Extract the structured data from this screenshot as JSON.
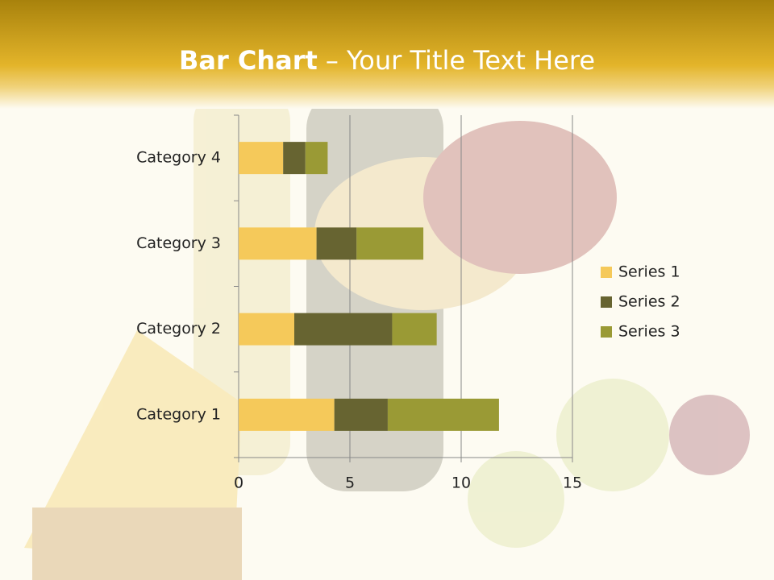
{
  "chart_data": {
    "type": "stacked-barh",
    "title": "Bar Chart",
    "title_rest": "– Your Title Text Here",
    "categories": [
      "Category 1",
      "Category 2",
      "Category 3",
      "Category 4"
    ],
    "series": [
      {
        "name": "Series 1",
        "color": "#f5c95a",
        "values": [
          4.3,
          2.5,
          3.5,
          2
        ]
      },
      {
        "name": "Series 2",
        "color": "#676431",
        "values": [
          2.4,
          4.4,
          1.8,
          1
        ]
      },
      {
        "name": "Series 3",
        "color": "#9a9a35",
        "values": [
          5,
          2,
          3,
          1
        ]
      }
    ],
    "xlim": [
      0,
      15
    ],
    "xticks": [
      0,
      5,
      10,
      15
    ],
    "grid": true,
    "legend": "right"
  }
}
